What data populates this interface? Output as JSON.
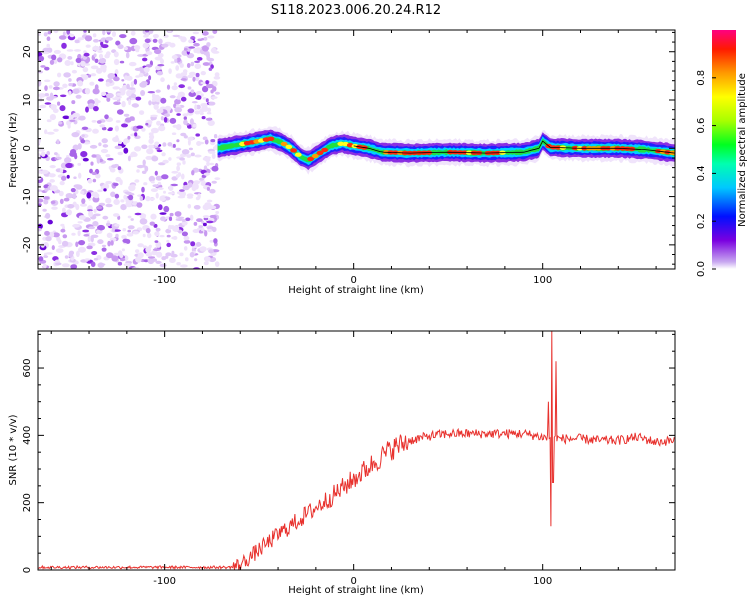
{
  "title": "S118.2023.006.20.24.R12",
  "charts": [
    {
      "name": "spectrogram",
      "type": "heatmap",
      "xlabel": "Height of straight line (km)",
      "ylabel": "Frequency (Hz)",
      "xlim": [
        -167,
        170
      ],
      "ylim": [
        -25,
        24.5
      ],
      "xticks": [
        -100,
        0,
        100
      ],
      "yticks": [
        -20,
        -10,
        0,
        10,
        20
      ],
      "colorbar": {
        "label": "Normalized spectral amplitude",
        "range": [
          0.0,
          1.0
        ],
        "ticks": [
          "0.0",
          "0.2",
          "0.4",
          "0.6",
          "0.8"
        ],
        "tick_values": [
          0.0,
          0.2,
          0.4,
          0.6,
          0.8
        ]
      },
      "noise_region_x": [
        -167,
        -72
      ],
      "signal_start_x": -72,
      "frequency_track": {
        "x": [
          -72,
          -60,
          -50,
          -44,
          -38,
          -33,
          -28,
          -24,
          -18,
          -12,
          -6,
          0,
          8,
          15,
          30,
          50,
          70,
          90,
          98,
          100,
          104,
          120,
          140,
          155,
          170
        ],
        "y": [
          0,
          0.8,
          1.5,
          2.0,
          1.2,
          0,
          -1.8,
          -2.5,
          -1.0,
          0.5,
          1.0,
          0.5,
          0,
          -0.8,
          -1.0,
          -0.8,
          -1.0,
          -0.8,
          0,
          1.5,
          0.2,
          0,
          0,
          -0.3,
          -1.0
        ]
      }
    },
    {
      "name": "snr",
      "type": "line",
      "xlabel": "Height of straight line (km)",
      "ylabel": "SNR (10 * v/v)",
      "xlim": [
        -167,
        170
      ],
      "ylim": [
        0,
        710
      ],
      "xticks": [
        -100,
        0,
        100
      ],
      "yticks": [
        0,
        200,
        400,
        600
      ],
      "color": "#e8322e",
      "trend": {
        "x": [
          -167,
          -65,
          -60,
          -50,
          -40,
          -30,
          -20,
          -10,
          0,
          10,
          20,
          30,
          40,
          50,
          60,
          70,
          80,
          90,
          95,
          100,
          105,
          110,
          120,
          130,
          140,
          150,
          160,
          170
        ],
        "y": [
          8,
          8,
          15,
          60,
          105,
          145,
          185,
          225,
          270,
          315,
          360,
          385,
          398,
          405,
          405,
          405,
          405,
          405,
          400,
          395,
          390,
          390,
          390,
          385,
          385,
          395,
          380,
          385
        ]
      },
      "spikes": [
        {
          "x": 103,
          "y": 500
        },
        {
          "x": 104.5,
          "y": 130
        },
        {
          "x": 105,
          "y": 710
        },
        {
          "x": 105.5,
          "y": 260
        },
        {
          "x": 107,
          "y": 620
        }
      ]
    }
  ]
}
